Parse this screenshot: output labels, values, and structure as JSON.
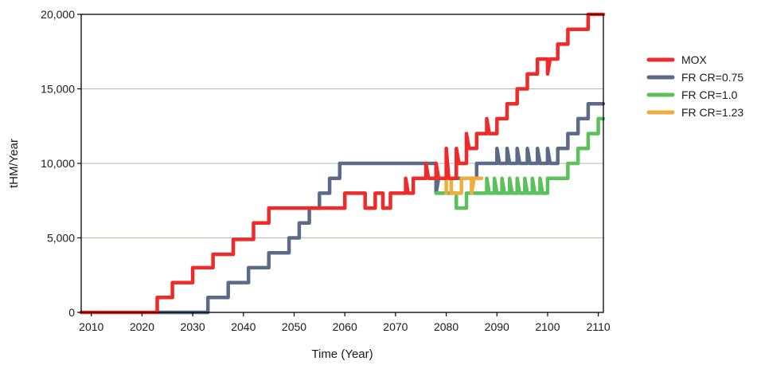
{
  "chart_data": {
    "type": "line",
    "title": "",
    "xlabel": "Time (Year)",
    "ylabel": "tHM/Year",
    "xlim": [
      2008,
      2111
    ],
    "ylim": [
      0,
      20000
    ],
    "xticks": [
      2010,
      2020,
      2030,
      2040,
      2050,
      2060,
      2070,
      2080,
      2090,
      2100,
      2110
    ],
    "yticks": [
      0,
      5000,
      10000,
      15000,
      20000
    ],
    "xtick_labels": [
      "2010",
      "2020",
      "2030",
      "2040",
      "2050",
      "2060",
      "2070",
      "2080",
      "2090",
      "2100",
      "2110"
    ],
    "ytick_labels": [
      "0",
      "5,000",
      "10,000",
      "15,000",
      "20,000"
    ],
    "grid": "horizontal",
    "legend": "right",
    "series": [
      {
        "name": "MOX",
        "color": "#ee2a2a",
        "points": [
          [
            2008,
            0
          ],
          [
            2023,
            0
          ],
          [
            2023,
            1000
          ],
          [
            2026,
            1000
          ],
          [
            2026,
            2000
          ],
          [
            2030,
            2000
          ],
          [
            2030,
            3000
          ],
          [
            2034,
            3000
          ],
          [
            2034,
            3900
          ],
          [
            2038,
            3900
          ],
          [
            2038,
            4900
          ],
          [
            2042,
            4900
          ],
          [
            2042,
            6000
          ],
          [
            2045,
            6000
          ],
          [
            2045,
            7000
          ],
          [
            2057,
            7000
          ],
          [
            2057,
            7000
          ],
          [
            2060,
            7000
          ],
          [
            2060,
            8000
          ],
          [
            2064,
            8000
          ],
          [
            2064,
            7000
          ],
          [
            2066,
            7000
          ],
          [
            2066,
            8000
          ],
          [
            2067.5,
            8000
          ],
          [
            2067.5,
            7000
          ],
          [
            2069,
            7000
          ],
          [
            2069,
            8000
          ],
          [
            2072,
            8000
          ],
          [
            2072,
            9000
          ],
          [
            2072.5,
            8000
          ],
          [
            2073.5,
            8000
          ],
          [
            2073.5,
            9000
          ],
          [
            2076,
            9000
          ],
          [
            2076,
            10000
          ],
          [
            2076.5,
            9000
          ],
          [
            2078,
            9000
          ],
          [
            2078,
            10000
          ],
          [
            2078.5,
            9000
          ],
          [
            2080,
            9000
          ],
          [
            2080,
            11000
          ],
          [
            2080.5,
            9000
          ],
          [
            2082,
            9000
          ],
          [
            2082,
            11000
          ],
          [
            2082.5,
            10000
          ],
          [
            2084,
            10000
          ],
          [
            2084,
            12000
          ],
          [
            2084.5,
            11000
          ],
          [
            2086,
            11000
          ],
          [
            2086,
            12000
          ],
          [
            2088,
            12000
          ],
          [
            2088,
            13000
          ],
          [
            2088.5,
            12000
          ],
          [
            2090,
            12000
          ],
          [
            2090,
            13000
          ],
          [
            2092,
            13000
          ],
          [
            2092,
            14000
          ],
          [
            2094,
            14000
          ],
          [
            2094,
            15000
          ],
          [
            2096,
            15000
          ],
          [
            2096,
            16000
          ],
          [
            2098,
            16000
          ],
          [
            2098,
            17000
          ],
          [
            2100,
            17000
          ],
          [
            2100,
            16000
          ],
          [
            2100.5,
            17000
          ],
          [
            2102,
            17000
          ],
          [
            2102,
            18000
          ],
          [
            2104,
            18000
          ],
          [
            2104,
            19000
          ],
          [
            2108,
            19000
          ],
          [
            2108,
            20000
          ],
          [
            2111,
            20000
          ]
        ]
      },
      {
        "name": "FR CR=0.75",
        "color": "#5b6a87",
        "points": [
          [
            2023,
            0
          ],
          [
            2033,
            0
          ],
          [
            2033,
            1000
          ],
          [
            2037,
            1000
          ],
          [
            2037,
            2000
          ],
          [
            2041,
            2000
          ],
          [
            2041,
            3000
          ],
          [
            2045,
            3000
          ],
          [
            2045,
            4000
          ],
          [
            2049,
            4000
          ],
          [
            2049,
            5000
          ],
          [
            2051,
            5000
          ],
          [
            2051,
            6000
          ],
          [
            2053,
            6000
          ],
          [
            2053,
            7000
          ],
          [
            2055,
            7000
          ],
          [
            2055,
            8000
          ],
          [
            2057,
            8000
          ],
          [
            2057,
            9000
          ],
          [
            2059,
            9000
          ],
          [
            2059,
            10000
          ],
          [
            2078,
            10000
          ],
          [
            2078,
            8000
          ],
          [
            2078.5,
            9000
          ],
          [
            2086,
            9000
          ],
          [
            2086,
            10000
          ],
          [
            2090,
            10000
          ],
          [
            2090,
            11000
          ],
          [
            2090.5,
            10000
          ],
          [
            2092,
            10000
          ],
          [
            2092,
            11000
          ],
          [
            2092.5,
            10000
          ],
          [
            2094,
            10000
          ],
          [
            2094,
            11000
          ],
          [
            2094.5,
            10000
          ],
          [
            2096,
            10000
          ],
          [
            2096,
            11000
          ],
          [
            2096.5,
            10000
          ],
          [
            2098,
            10000
          ],
          [
            2098,
            11000
          ],
          [
            2098.5,
            10000
          ],
          [
            2100,
            10000
          ],
          [
            2100,
            11000
          ],
          [
            2100.5,
            10000
          ],
          [
            2102,
            10000
          ],
          [
            2102,
            11000
          ],
          [
            2104,
            11000
          ],
          [
            2104,
            12000
          ],
          [
            2106,
            12000
          ],
          [
            2106,
            13000
          ],
          [
            2108,
            13000
          ],
          [
            2108,
            14000
          ],
          [
            2111,
            14000
          ]
        ]
      },
      {
        "name": "FR CR=1.0",
        "color": "#5cc05c",
        "points": [
          [
            2078,
            8000
          ],
          [
            2082,
            8000
          ],
          [
            2082,
            7000
          ],
          [
            2084,
            7000
          ],
          [
            2084,
            8000
          ],
          [
            2088,
            8000
          ],
          [
            2088,
            9000
          ],
          [
            2088.5,
            8000
          ],
          [
            2089.5,
            8000
          ],
          [
            2089.5,
            9000
          ],
          [
            2090,
            8000
          ],
          [
            2091,
            8000
          ],
          [
            2091,
            9000
          ],
          [
            2091.5,
            8000
          ],
          [
            2092.5,
            8000
          ],
          [
            2092.5,
            9000
          ],
          [
            2093,
            8000
          ],
          [
            2094,
            8000
          ],
          [
            2094,
            9000
          ],
          [
            2094.5,
            8000
          ],
          [
            2095.5,
            8000
          ],
          [
            2095.5,
            9000
          ],
          [
            2096,
            8000
          ],
          [
            2097,
            8000
          ],
          [
            2097,
            9000
          ],
          [
            2097.5,
            8000
          ],
          [
            2098.5,
            8000
          ],
          [
            2098.5,
            9000
          ],
          [
            2099,
            8000
          ],
          [
            2100,
            8000
          ],
          [
            2100,
            9000
          ],
          [
            2104,
            9000
          ],
          [
            2104,
            10000
          ],
          [
            2106,
            10000
          ],
          [
            2106,
            11000
          ],
          [
            2108,
            11000
          ],
          [
            2108,
            12000
          ],
          [
            2110,
            12000
          ],
          [
            2110,
            13000
          ],
          [
            2111,
            13000
          ]
        ]
      },
      {
        "name": "FR CR=1.23",
        "color": "#f0ad3c",
        "points": [
          [
            2080,
            8000
          ],
          [
            2080,
            9000
          ],
          [
            2081,
            9000
          ],
          [
            2081,
            8000
          ],
          [
            2083,
            8000
          ],
          [
            2083,
            9000
          ],
          [
            2085,
            9000
          ],
          [
            2085,
            8000
          ],
          [
            2085.5,
            9000
          ],
          [
            2087,
            9000
          ]
        ]
      }
    ]
  }
}
